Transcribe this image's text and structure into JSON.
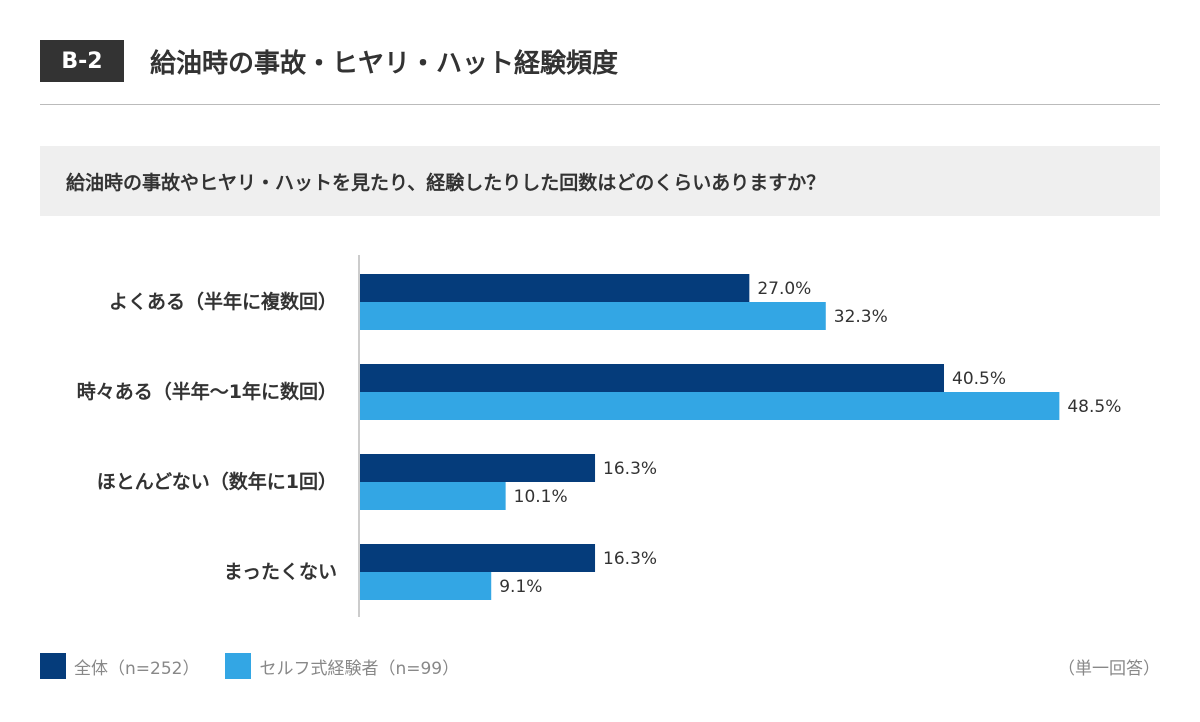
{
  "header": {
    "badge": "B-2",
    "title": "給油時の事故・ヒヤリ・ハット経験頻度"
  },
  "question": "給油時の事故やヒヤリ・ハットを見たり、経験したりした回数はどのくらいありますか？",
  "colors": {
    "series1": "#053c7b",
    "series2": "#33a6e4",
    "axis": "#999999"
  },
  "chart_data": {
    "type": "bar",
    "orientation": "horizontal",
    "categories": [
      "よくある（半年に複数回）",
      "時々ある（半年〜1年に数回）",
      "ほとんどない（数年に1回）",
      "まったくない"
    ],
    "series": [
      {
        "name": "全体（n=252）",
        "values": [
          27.0,
          40.5,
          16.3,
          16.3
        ],
        "labels": [
          "27.0%",
          "40.5%",
          "16.3%",
          "16.3%"
        ]
      },
      {
        "name": "セルフ式経験者（n=99）",
        "values": [
          32.3,
          48.5,
          10.1,
          9.1
        ],
        "labels": [
          "32.3%",
          "48.5%",
          "10.1%",
          "9.1%"
        ]
      }
    ],
    "xlim": [
      0,
      50
    ],
    "unit": "%",
    "legend_position": "bottom-left"
  },
  "legend": {
    "items": [
      "全体（n=252）",
      "セルフ式経験者（n=99）"
    ]
  },
  "note": "（単一回答）"
}
